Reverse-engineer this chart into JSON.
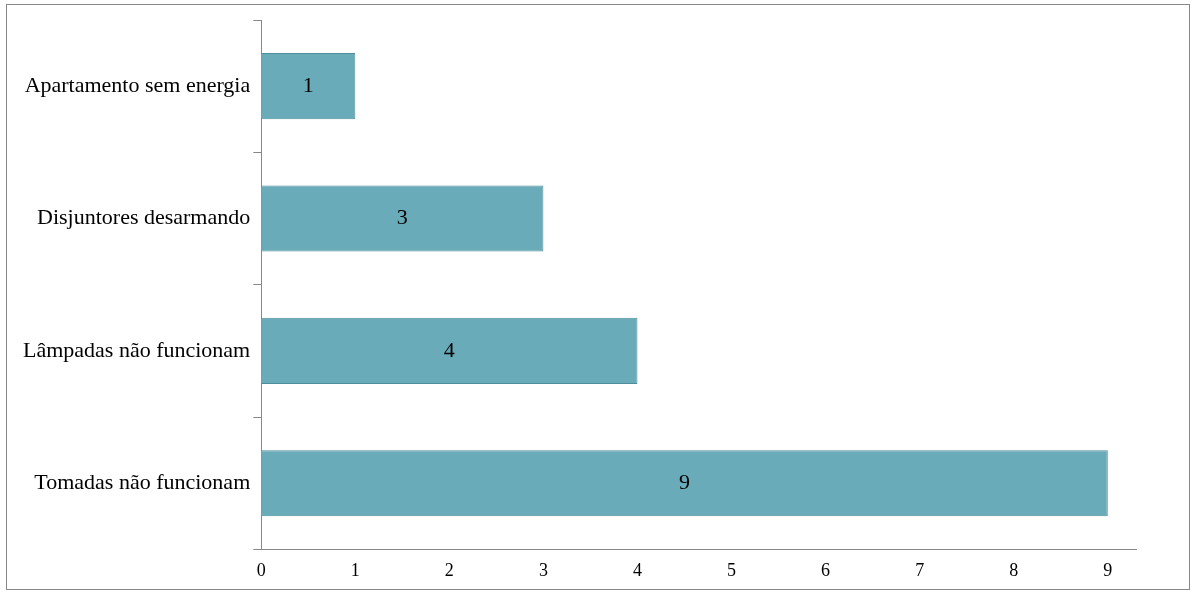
{
  "chart_data": {
    "type": "bar",
    "orientation": "horizontal",
    "categories": [
      "Apartamento sem energia",
      "Disjuntores desarmando",
      "Lâmpadas não funcionam",
      "Tomadas não funcionam"
    ],
    "values": [
      1,
      3,
      4,
      9
    ],
    "color": "#6aabba",
    "xlim": [
      0,
      9.3
    ],
    "xticks": [
      0,
      1,
      2,
      3,
      4,
      5,
      6,
      7,
      8,
      9
    ],
    "grid": false,
    "legend": false,
    "data_labels": true
  }
}
